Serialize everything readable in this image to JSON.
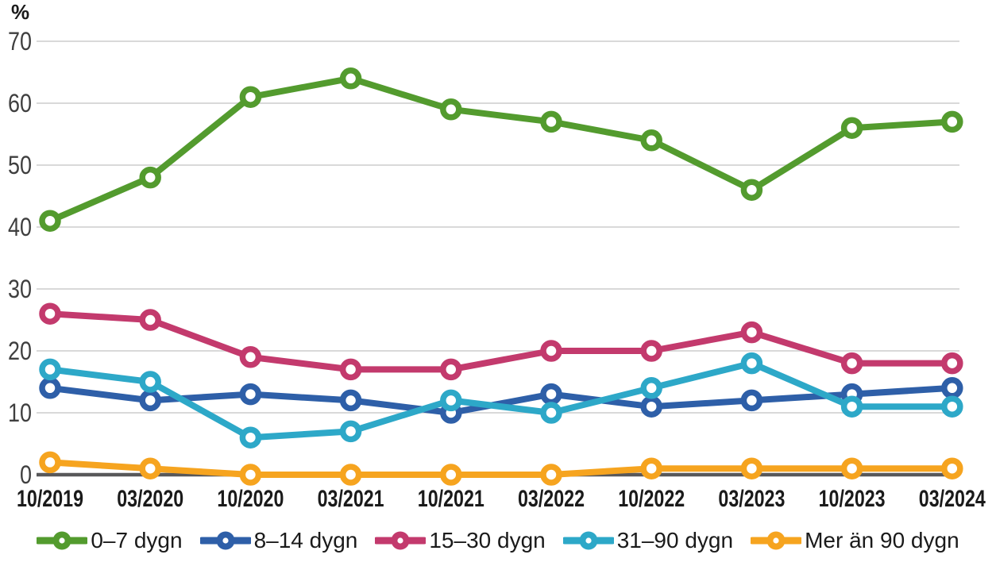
{
  "chart_data": {
    "type": "line",
    "title": "",
    "unit_label": "%",
    "xlabel": "",
    "ylabel": "%",
    "ylim": [
      0,
      70
    ],
    "y_ticks": [
      0,
      10,
      20,
      30,
      40,
      50,
      60,
      70
    ],
    "grid": true,
    "legend_position": "bottom",
    "categories": [
      "10/2019",
      "03/2020",
      "10/2020",
      "03/2021",
      "10/2021",
      "03/2022",
      "10/2022",
      "03/2023",
      "10/2023",
      "03/2024"
    ],
    "series": [
      {
        "name": "0–7 dygn",
        "color": "#539b2e",
        "values": [
          41,
          48,
          61,
          64,
          59,
          57,
          54,
          46,
          56,
          57
        ]
      },
      {
        "name": "8–14 dygn",
        "color": "#2e5fa8",
        "values": [
          14,
          12,
          13,
          12,
          10,
          13,
          11,
          12,
          13,
          14
        ]
      },
      {
        "name": "15–30 dygn",
        "color": "#c33a6d",
        "values": [
          26,
          25,
          19,
          17,
          17,
          20,
          20,
          23,
          18,
          18
        ]
      },
      {
        "name": "31–90 dygn",
        "color": "#2da8c8",
        "values": [
          17,
          15,
          6,
          7,
          12,
          10,
          14,
          18,
          11,
          11
        ]
      },
      {
        "name": "Mer än 90 dygn",
        "color": "#f6a41f",
        "values": [
          2,
          1,
          0,
          0,
          0,
          0,
          1,
          1,
          1,
          1
        ]
      }
    ],
    "colors": {
      "gridline": "#d9d9d9",
      "axis_line": "#58585a",
      "tick_label": "#3f3f3f",
      "x_label": "#1a1a1a",
      "marker_fill": "#ffffff"
    }
  }
}
